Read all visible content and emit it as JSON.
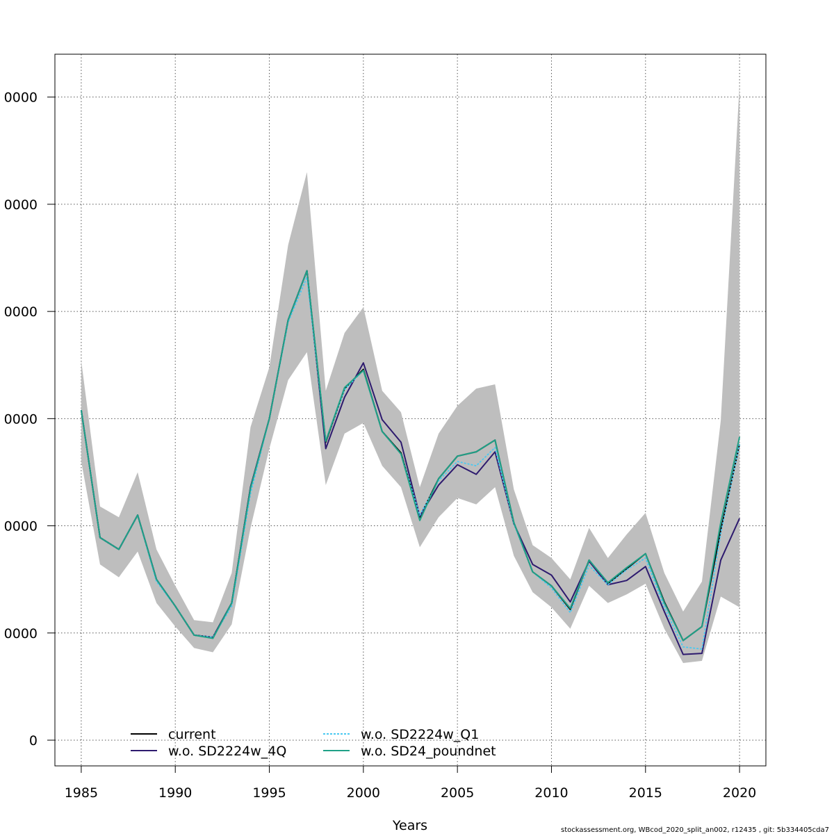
{
  "chart_data": {
    "type": "line",
    "xlabel": "Years",
    "ylabel": "",
    "xlim": [
      1983.6,
      2021.4
    ],
    "ylim": [
      -12000,
      320000
    ],
    "x_ticks": [
      1985,
      1990,
      1995,
      2000,
      2005,
      2010,
      2015,
      2020
    ],
    "x_tick_labels": [
      "1985",
      "1990",
      "1995",
      "2000",
      "2005",
      "2010",
      "2015",
      "2020"
    ],
    "y_ticks": [
      0,
      50000,
      100000,
      150000,
      200000,
      250000,
      300000
    ],
    "y_tick_labels": [
      "0",
      "0000",
      "0000",
      "0000",
      "0000",
      "0000",
      "0000"
    ],
    "grid": true,
    "legend_position": "bottom-left",
    "x": [
      1985,
      1986,
      1987,
      1988,
      1989,
      1990,
      1991,
      1992,
      1993,
      1994,
      1995,
      1996,
      1997,
      1998,
      1999,
      2000,
      2001,
      2002,
      2003,
      2004,
      2005,
      2006,
      2007,
      2008,
      2009,
      2010,
      2011,
      2012,
      2013,
      2014,
      2015,
      2016,
      2017,
      2018,
      2019,
      2020
    ],
    "confidence_band": {
      "upper": [
        177000,
        109000,
        104000,
        125000,
        89000,
        72000,
        56000,
        55000,
        78000,
        146000,
        174000,
        231000,
        265000,
        163000,
        190000,
        202000,
        163000,
        153000,
        118000,
        143000,
        156000,
        164000,
        166000,
        117000,
        91000,
        85000,
        75000,
        99000,
        85000,
        96000,
        106000,
        78000,
        60000,
        74000,
        149000,
        306000
      ],
      "lower": [
        130000,
        82000,
        76000,
        88000,
        64000,
        53000,
        43000,
        41000,
        54000,
        99000,
        136000,
        168000,
        181000,
        119000,
        143000,
        148000,
        128000,
        118000,
        90000,
        104000,
        113000,
        110000,
        118000,
        86000,
        69000,
        62000,
        52000,
        72000,
        64000,
        68000,
        73000,
        52000,
        36000,
        37000,
        67000,
        62000
      ]
    },
    "series": [
      {
        "name": "current",
        "color": "#000000",
        "dash": "solid",
        "values": [
          154000,
          94500,
          89000,
          105000,
          75000,
          62500,
          49000,
          48000,
          64000,
          118000,
          150000,
          196000,
          219000,
          139000,
          164000,
          173000,
          144000,
          134000,
          104000,
          122000,
          132500,
          134500,
          140000,
          101500,
          78500,
          72000,
          61000,
          84000,
          73000,
          80000,
          87000,
          64500,
          46500,
          53000,
          98000,
          138000
        ]
      },
      {
        "name": "w.o. SD2224w_4Q",
        "color": "#2d1a6e",
        "dash": "solid",
        "values": [
          154000,
          94500,
          89000,
          105000,
          75000,
          62500,
          49000,
          48000,
          64000,
          118000,
          150000,
          196000,
          219000,
          136000,
          160000,
          176000,
          149500,
          139000,
          104500,
          119000,
          128500,
          124000,
          134500,
          101000,
          82000,
          77000,
          64500,
          83500,
          72500,
          74500,
          81000,
          60000,
          40000,
          40500,
          84000,
          103500
        ]
      },
      {
        "name": "w.o. SD2224w_Q1",
        "color": "#49c9f1",
        "dash": "dotted",
        "values": [
          154000,
          94500,
          89000,
          105000,
          74000,
          62500,
          49000,
          48000,
          62500,
          115000,
          150000,
          195000,
          216000,
          139500,
          163500,
          172500,
          144000,
          133500,
          105000,
          121000,
          130000,
          128000,
          136500,
          101000,
          78500,
          71000,
          59500,
          81500,
          72500,
          79500,
          85000,
          62000,
          43500,
          42500,
          96500,
          138000
        ]
      },
      {
        "name": "w.o. SD24_poundnet",
        "color": "#1fa187",
        "dash": "solid",
        "values": [
          154000,
          94500,
          89000,
          105000,
          75000,
          62500,
          49000,
          47500,
          64000,
          117500,
          150000,
          196000,
          219000,
          139500,
          164500,
          172500,
          144000,
          133500,
          102500,
          122000,
          132500,
          134500,
          140000,
          101500,
          78500,
          72000,
          61500,
          84000,
          73500,
          80500,
          87000,
          64000,
          46500,
          53000,
          101500,
          141500
        ]
      }
    ]
  },
  "footer": "stockassessment.org, WBcod_2020_split_an002, r12435 , git: 5b334405cda7"
}
